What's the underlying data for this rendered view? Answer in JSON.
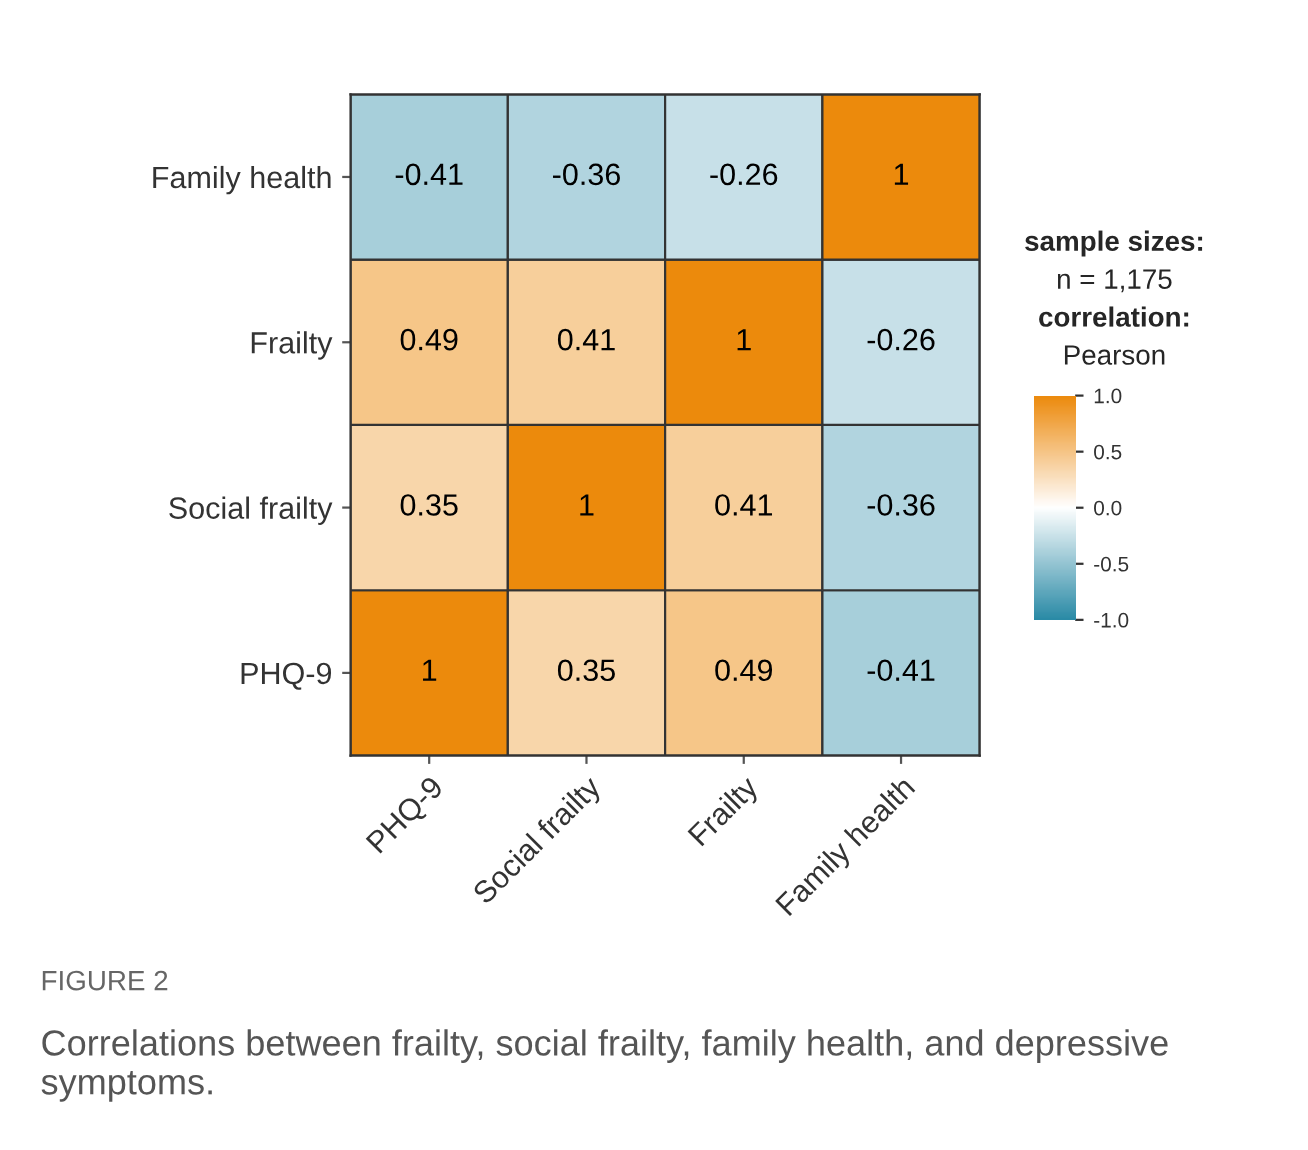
{
  "chart_data": {
    "type": "heatmap",
    "categories": [
      "PHQ-9",
      "Social frailty",
      "Frailty",
      "Family health"
    ],
    "y_categories": [
      "Family health",
      "Frailty",
      "Social frailty",
      "PHQ-9"
    ],
    "cells": [
      [
        -0.41,
        -0.36,
        -0.26,
        1
      ],
      [
        0.49,
        0.41,
        1,
        -0.26
      ],
      [
        0.35,
        1,
        0.41,
        -0.36
      ],
      [
        1,
        0.35,
        0.49,
        -0.41
      ]
    ],
    "data_labels": true,
    "colors": [
      "#2a8aa6",
      "#ffffff",
      "#ec8a0c"
    ],
    "clim": [
      -1,
      1
    ],
    "cticks": [
      {
        "value": -1,
        "label": "-1.0"
      },
      {
        "value": -0.5,
        "label": "-0.5"
      },
      {
        "value": 0,
        "label": "0.0"
      },
      {
        "value": 0.5,
        "label": "0.5"
      },
      {
        "value": 1,
        "label": "1.0"
      }
    ],
    "annotations": [
      "sample sizes:",
      "n = 1,175",
      "correlation:",
      "Pearson",
      "FIGURE 2",
      "Correlations between frailty, social frailty, family health, and depressive symptoms."
    ]
  }
}
